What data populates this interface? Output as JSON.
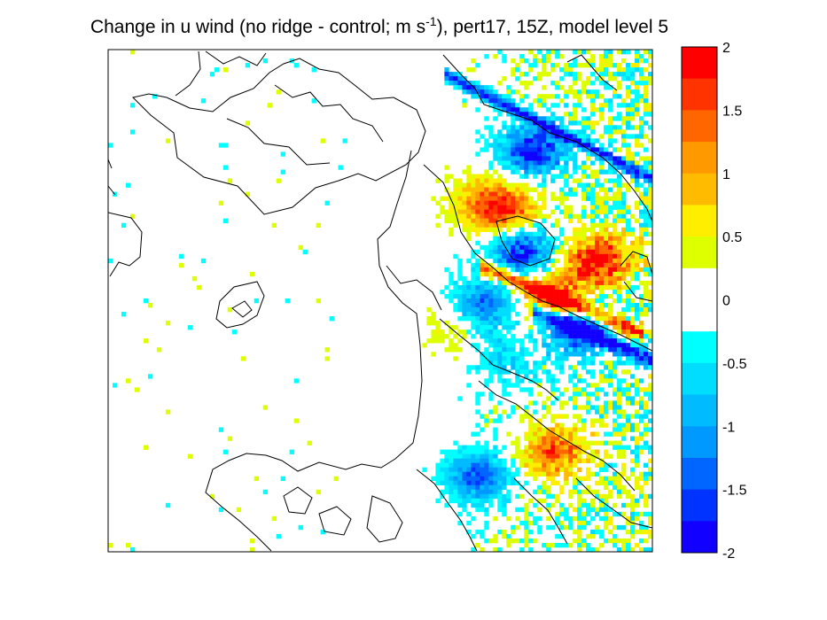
{
  "chart_data": {
    "type": "heatmap",
    "title": {
      "prefix": "Change in u wind (no ridge - control; m s",
      "superscript": "-1",
      "suffix": "), pert17, 15Z, model level 5"
    },
    "xlabel": "",
    "ylabel": "",
    "colorbar": {
      "range": [
        -2,
        2
      ],
      "tick_labels": [
        "2",
        "1.5",
        "1",
        "0.5",
        "0",
        "-0.5",
        "-1",
        "-1.5",
        "-2"
      ],
      "tick_values": [
        2,
        1.5,
        1,
        0.5,
        0,
        -0.5,
        -1,
        -1.5,
        -2
      ],
      "levels": [
        {
          "min": 1.75,
          "max": 2.0,
          "color": "#ff0000"
        },
        {
          "min": 1.5,
          "max": 1.75,
          "color": "#ff3300"
        },
        {
          "min": 1.25,
          "max": 1.5,
          "color": "#ff6600"
        },
        {
          "min": 1.0,
          "max": 1.25,
          "color": "#ff9900"
        },
        {
          "min": 0.75,
          "max": 1.0,
          "color": "#ffbb00"
        },
        {
          "min": 0.5,
          "max": 0.75,
          "color": "#ffee00"
        },
        {
          "min": 0.25,
          "max": 0.5,
          "color": "#ddff00"
        },
        {
          "min": -0.25,
          "max": 0.25,
          "color": "#ffffff"
        },
        {
          "min": -0.5,
          "max": -0.25,
          "color": "#00ffff"
        },
        {
          "min": -0.75,
          "max": -0.5,
          "color": "#00ddff"
        },
        {
          "min": -1.0,
          "max": -0.75,
          "color": "#00bbff"
        },
        {
          "min": -1.25,
          "max": -1.0,
          "color": "#0099ff"
        },
        {
          "min": -1.5,
          "max": -1.25,
          "color": "#0066ff"
        },
        {
          "min": -1.75,
          "max": -1.5,
          "color": "#0033ff"
        },
        {
          "min": -2.0,
          "max": -1.75,
          "color": "#1100ff"
        }
      ]
    },
    "field_features": [
      {
        "desc": "positive core east",
        "x": 0.9,
        "y": 0.42,
        "value": 2.0
      },
      {
        "desc": "positive band NE",
        "x": 0.73,
        "y": 0.32,
        "value": 1.6
      },
      {
        "desc": "positive band diagonal",
        "x": 0.82,
        "y": 0.5,
        "value": 1.8
      },
      {
        "desc": "negative band upper",
        "x": 0.78,
        "y": 0.2,
        "value": -1.8
      },
      {
        "desc": "negative band middle",
        "x": 0.76,
        "y": 0.4,
        "value": -1.7
      },
      {
        "desc": "negative band lower",
        "x": 0.86,
        "y": 0.55,
        "value": -1.9
      },
      {
        "desc": "negative patch",
        "x": 0.69,
        "y": 0.51,
        "value": -1.4
      },
      {
        "desc": "mixed south cluster neg",
        "x": 0.68,
        "y": 0.85,
        "value": -1.5
      },
      {
        "desc": "mixed south cluster pos",
        "x": 0.82,
        "y": 0.8,
        "value": 1.5
      },
      {
        "desc": "weak positive halo",
        "x": 0.68,
        "y": 0.3,
        "value": 0.7
      },
      {
        "desc": "weak positive halo 2",
        "x": 0.63,
        "y": 0.55,
        "value": 0.5
      },
      {
        "desc": "weak negative halo",
        "x": 0.73,
        "y": 0.62,
        "value": -0.6
      }
    ]
  }
}
